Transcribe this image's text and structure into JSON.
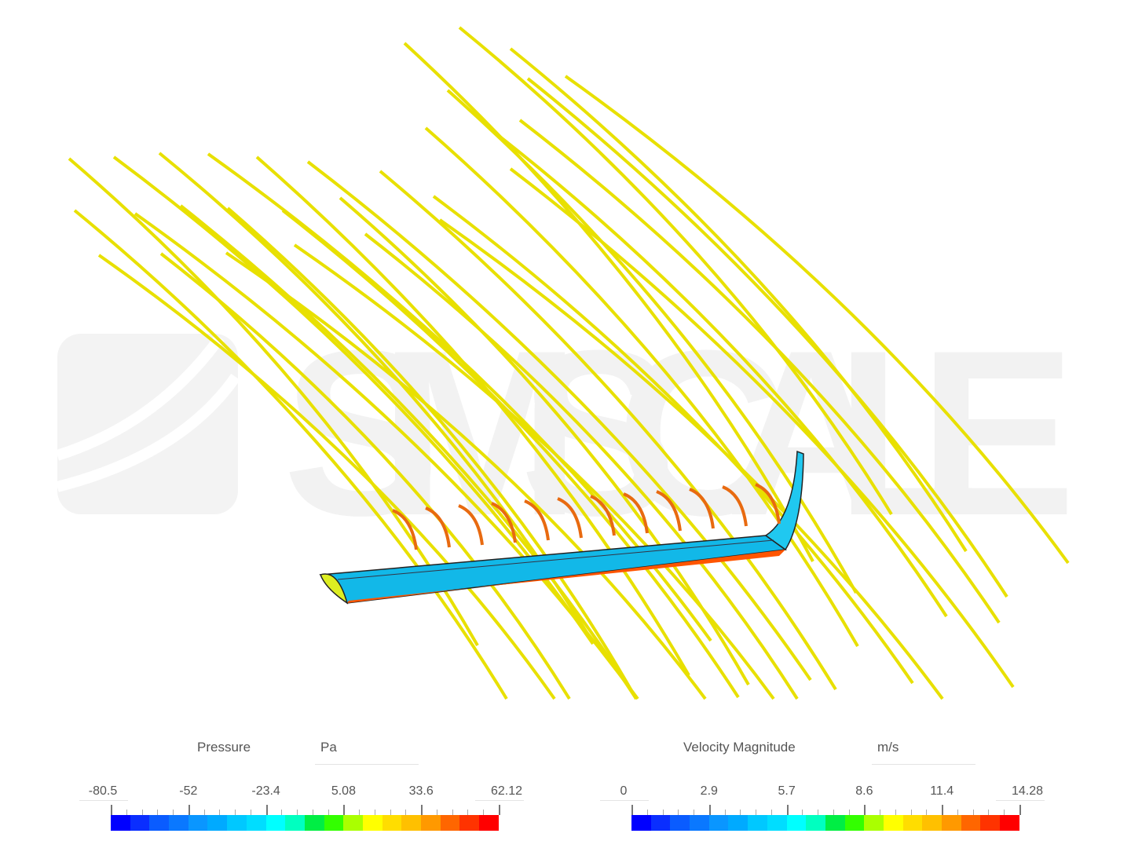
{
  "watermark": "SIMSCALE",
  "legends": [
    {
      "title": "Pressure",
      "unit": "Pa",
      "labels": [
        "-80.5",
        "-52",
        "-23.4",
        "5.08",
        "33.6",
        "62.12"
      ]
    },
    {
      "title": "Velocity Magnitude",
      "unit": "m/s",
      "labels": [
        "0",
        "2.9",
        "5.7",
        "8.6",
        "11.4",
        "14.28"
      ]
    }
  ],
  "colormap": [
    "#0000ff",
    "#0a2eff",
    "#0a5cff",
    "#0a78ff",
    "#0a96ff",
    "#00aaff",
    "#00c8ff",
    "#00ddff",
    "#00ffff",
    "#00ffc0",
    "#00ee44",
    "#33ff00",
    "#aaff00",
    "#ffff00",
    "#ffdd00",
    "#ffc000",
    "#ff9900",
    "#ff6600",
    "#ff3300",
    "#ff0000"
  ],
  "colors": {
    "streamline": "#e8e000",
    "wing": "#10b8e8",
    "watermark": "#f2f2f2"
  }
}
